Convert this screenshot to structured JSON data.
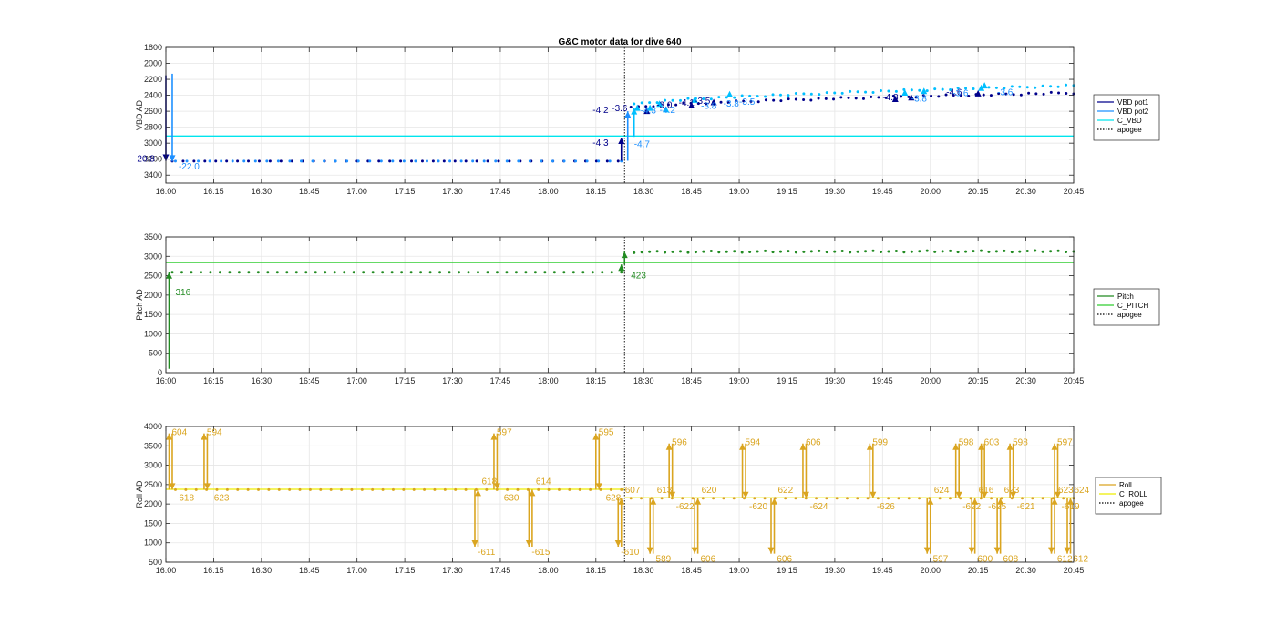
{
  "title": "G&C motor data for dive 640",
  "chart_data": [
    {
      "type": "scatter",
      "ylabel": "VBD AD",
      "ylim": [
        1800,
        3500
      ],
      "yreverse": true,
      "yticks": [
        1800,
        2000,
        2200,
        2400,
        2600,
        2800,
        3000,
        3200,
        3400
      ],
      "xticks": [
        "16:00",
        "16:15",
        "16:30",
        "16:45",
        "17:00",
        "17:15",
        "17:30",
        "17:45",
        "18:00",
        "18:15",
        "18:30",
        "18:45",
        "19:00",
        "19:15",
        "19:30",
        "19:45",
        "20:00",
        "20:15",
        "20:30",
        "20:45"
      ],
      "xlim_minutes": [
        0,
        285
      ],
      "grid": true,
      "legend": {
        "position": "right",
        "entries": [
          {
            "label": "VBD pot1",
            "color": "#00008b",
            "style": "solid"
          },
          {
            "label": "VBD pot2",
            "color": "#1e90ff",
            "style": "solid"
          },
          {
            "label": "C_VBD",
            "color": "#00e5ee",
            "style": "solid"
          },
          {
            "label": "apogee",
            "color": "#000000",
            "style": "dotted"
          }
        ]
      },
      "hlines": [
        {
          "name": "C_VBD",
          "y": 2910,
          "color": "#00e5ee"
        }
      ],
      "vline_apogee_minutes": 144,
      "series": [
        {
          "name": "VBD pot1",
          "color": "#00008b",
          "x_start": 2,
          "x_end": 142,
          "count": 42,
          "y": 3225
        },
        {
          "name": "VBD pot2",
          "color": "#1e90ff",
          "x_start": 3,
          "x_end": 143,
          "count": 40,
          "y": 3225
        },
        {
          "name": "VBD pot1",
          "color": "#00008b",
          "x_start": 146,
          "x_end": 285,
          "count": 60,
          "y_from": 2560,
          "y_to": 2370
        },
        {
          "name": "VBD pot2",
          "color": "#00bfff",
          "x_start": 147,
          "x_end": 285,
          "count": 58,
          "y_from": 2520,
          "y_to": 2280
        }
      ],
      "arrows": [
        {
          "x": 0,
          "y_from": 2150,
          "y_to": 3220,
          "color": "#00008b"
        },
        {
          "x": 2,
          "y_from": 2130,
          "y_to": 3230,
          "color": "#1e90ff"
        },
        {
          "x": 143,
          "y_from": 3220,
          "y_to": 2930,
          "color": "#00008b"
        },
        {
          "x": 145,
          "y_from": 3220,
          "y_to": 2600,
          "color": "#1e90ff"
        },
        {
          "x": 147,
          "y_from": 2920,
          "y_to": 2560,
          "color": "#00bfff"
        }
      ],
      "markers": [
        {
          "x": 148,
          "y": 2560,
          "color": "#00bfff"
        },
        {
          "x": 151,
          "y": 2600,
          "color": "#00008b"
        },
        {
          "x": 152,
          "y": 2560,
          "color": "#00bfff"
        },
        {
          "x": 155,
          "y": 2510,
          "color": "#00bfff"
        },
        {
          "x": 157,
          "y": 2580,
          "color": "#00bfff"
        },
        {
          "x": 165,
          "y": 2530,
          "color": "#00008b"
        },
        {
          "x": 166,
          "y": 2460,
          "color": "#00bfff"
        },
        {
          "x": 172,
          "y": 2490,
          "color": "#00008b"
        },
        {
          "x": 177,
          "y": 2390,
          "color": "#00bfff"
        },
        {
          "x": 229,
          "y": 2450,
          "color": "#00008b"
        },
        {
          "x": 232,
          "y": 2370,
          "color": "#00bfff"
        },
        {
          "x": 234,
          "y": 2430,
          "color": "#00008b"
        },
        {
          "x": 238,
          "y": 2350,
          "color": "#00bfff"
        },
        {
          "x": 255,
          "y": 2380,
          "color": "#00008b"
        },
        {
          "x": 256,
          "y": 2310,
          "color": "#00bfff"
        },
        {
          "x": 257,
          "y": 2280,
          "color": "#00bfff"
        }
      ],
      "annotations": [
        {
          "text": "-20.8",
          "x": -10,
          "y": 3230,
          "color": "#00008b"
        },
        {
          "text": "-22.0",
          "x": 4,
          "y": 3330,
          "color": "#1e90ff"
        },
        {
          "text": "-4.2",
          "x": 134,
          "y": 2620,
          "color": "#00008b"
        },
        {
          "text": "-3.6",
          "x": 140,
          "y": 2600,
          "color": "#00008b"
        },
        {
          "text": "-4.3",
          "x": 134,
          "y": 3030,
          "color": "#00008b"
        },
        {
          "text": "-4.7",
          "x": 147,
          "y": 3050,
          "color": "#1e90ff"
        },
        {
          "text": "-3.0",
          "x": 154,
          "y": 2560,
          "color": "#00008b"
        },
        {
          "text": "-4.3",
          "x": 149,
          "y": 2630,
          "color": "#1e90ff"
        },
        {
          "text": "-4.2",
          "x": 155,
          "y": 2620,
          "color": "#1e90ff"
        },
        {
          "text": "-4.1",
          "x": 161,
          "y": 2530,
          "color": "#00008b"
        },
        {
          "text": "-3.5",
          "x": 166,
          "y": 2510,
          "color": "#00008b"
        },
        {
          "text": "-3.8",
          "x": 168,
          "y": 2570,
          "color": "#1e90ff"
        },
        {
          "text": "-3.8",
          "x": 175,
          "y": 2540,
          "color": "#1e90ff"
        },
        {
          "text": "-3.5",
          "x": 180,
          "y": 2520,
          "color": "#1e90ff"
        },
        {
          "text": "-4.8",
          "x": 225,
          "y": 2460,
          "color": "#00008b"
        },
        {
          "text": "-3.8",
          "x": 234,
          "y": 2480,
          "color": "#1e90ff"
        },
        {
          "text": "-4.6",
          "x": 245,
          "y": 2400,
          "color": "#00008b"
        },
        {
          "text": "-3.6",
          "x": 247,
          "y": 2410,
          "color": "#1e90ff"
        },
        {
          "text": "-3.6",
          "x": 261,
          "y": 2400,
          "color": "#1e90ff"
        }
      ]
    },
    {
      "type": "scatter",
      "ylabel": "Pitch AD",
      "ylim": [
        0,
        3500
      ],
      "yreverse": false,
      "yticks": [
        0,
        500,
        1000,
        1500,
        2000,
        2500,
        3000,
        3500
      ],
      "xticks": [
        "16:00",
        "16:15",
        "16:30",
        "16:45",
        "17:00",
        "17:15",
        "17:30",
        "17:45",
        "18:00",
        "18:15",
        "18:30",
        "18:45",
        "19:00",
        "19:15",
        "19:30",
        "19:45",
        "20:00",
        "20:15",
        "20:30",
        "20:45"
      ],
      "xlim_minutes": [
        0,
        285
      ],
      "grid": true,
      "legend": {
        "position": "right",
        "entries": [
          {
            "label": "Pitch",
            "color": "#228b22",
            "style": "solid"
          },
          {
            "label": "C_PITCH",
            "color": "#32cd32",
            "style": "solid"
          },
          {
            "label": "apogee",
            "color": "#000000",
            "style": "dotted"
          }
        ]
      },
      "hlines": [
        {
          "name": "C_PITCH",
          "y": 2840,
          "color": "#32cd32"
        }
      ],
      "vline_apogee_minutes": 144,
      "series": [
        {
          "name": "Pitch",
          "color": "#228b22",
          "x_start": 2,
          "x_end": 143,
          "count": 48,
          "y": 2590
        },
        {
          "name": "Pitch",
          "color": "#228b22",
          "x_start": 147,
          "x_end": 285,
          "count": 58,
          "y_from": 3110,
          "y_to": 3130
        }
      ],
      "arrows": [
        {
          "x": 1,
          "y_from": 100,
          "y_to": 2590,
          "color": "#228b22"
        },
        {
          "x": 143,
          "y_from": 2590,
          "y_to": 2790,
          "color": "#228b22"
        },
        {
          "x": 144,
          "y_from": 2790,
          "y_to": 3120,
          "color": "#228b22"
        }
      ],
      "markers": [],
      "annotations": [
        {
          "text": "316",
          "x": 3,
          "y": 2000,
          "color": "#228b22"
        },
        {
          "text": "423",
          "x": 146,
          "y": 2430,
          "color": "#228b22"
        }
      ]
    },
    {
      "type": "scatter",
      "ylabel": "Roll AD",
      "ylim": [
        500,
        4000
      ],
      "yreverse": false,
      "yticks": [
        500,
        1000,
        1500,
        2000,
        2500,
        3000,
        3500,
        4000
      ],
      "xticks": [
        "16:00",
        "16:15",
        "16:30",
        "16:45",
        "17:00",
        "17:15",
        "17:30",
        "17:45",
        "18:00",
        "18:15",
        "18:30",
        "18:45",
        "19:00",
        "19:15",
        "19:30",
        "19:45",
        "20:00",
        "20:15",
        "20:30",
        "20:45"
      ],
      "xlim_minutes": [
        0,
        285
      ],
      "grid": true,
      "legend": {
        "position": "right",
        "entries": [
          {
            "label": "Roll",
            "color": "#daa520",
            "style": "solid"
          },
          {
            "label": "C_ROLL",
            "color": "#eeee00",
            "style": "solid"
          },
          {
            "label": "apogee",
            "color": "#000000",
            "style": "dotted"
          }
        ]
      },
      "hlines": [
        {
          "name": "C_ROLL",
          "y": 2380,
          "x_from": 0,
          "x_to": 144,
          "color": "#eeee00"
        },
        {
          "name": "C_ROLL",
          "y": 2160,
          "x_from": 144,
          "x_to": 285,
          "color": "#eeee00"
        }
      ],
      "vline_apogee_minutes": 144,
      "series": [
        {
          "name": "Roll",
          "color": "#daa520",
          "x_start": 3,
          "x_end": 143,
          "count": 44,
          "y": 2370
        },
        {
          "name": "Roll",
          "color": "#daa520",
          "x_start": 146,
          "x_end": 285,
          "count": 44,
          "y": 2150
        }
      ],
      "arrow_pairs": [
        {
          "x": 1,
          "y_base": 2370,
          "y_peak": 3820,
          "dir": "up",
          "lbl_peak": "604",
          "lbl_back": "-618"
        },
        {
          "x": 12,
          "y_base": 2370,
          "y_peak": 3820,
          "dir": "up",
          "lbl_peak": "594",
          "lbl_back": "-623"
        },
        {
          "x": 97,
          "y_base": 2370,
          "y_peak": 900,
          "dir": "down",
          "lbl_peak": "-611",
          "lbl_back": "618"
        },
        {
          "x": 103,
          "y_base": 2370,
          "y_peak": 3820,
          "dir": "up",
          "lbl_peak": "597",
          "lbl_back": "-630"
        },
        {
          "x": 114,
          "y_base": 2370,
          "y_peak": 900,
          "dir": "down",
          "lbl_peak": "-615",
          "lbl_back": "614"
        },
        {
          "x": 135,
          "y_base": 2370,
          "y_peak": 3820,
          "dir": "up",
          "lbl_peak": "595",
          "lbl_back": "-628"
        },
        {
          "x": 142,
          "y_base": 2150,
          "y_peak": 900,
          "dir": "down",
          "lbl_peak": "-610",
          "lbl_back": "607"
        },
        {
          "x": 152,
          "y_base": 2150,
          "y_peak": 720,
          "dir": "down",
          "lbl_peak": "-589",
          "lbl_back": "613"
        },
        {
          "x": 158,
          "y_base": 2150,
          "y_peak": 3560,
          "dir": "up",
          "lbl_peak": "596",
          "lbl_back": "-622"
        },
        {
          "x": 166,
          "y_base": 2150,
          "y_peak": 720,
          "dir": "down",
          "lbl_peak": "-606",
          "lbl_back": "620"
        },
        {
          "x": 181,
          "y_base": 2150,
          "y_peak": 3560,
          "dir": "up",
          "lbl_peak": "594",
          "lbl_back": "-620"
        },
        {
          "x": 190,
          "y_base": 2150,
          "y_peak": 720,
          "dir": "down",
          "lbl_peak": "-606",
          "lbl_back": "622"
        },
        {
          "x": 200,
          "y_base": 2150,
          "y_peak": 3560,
          "dir": "up",
          "lbl_peak": "606",
          "lbl_back": "-624"
        },
        {
          "x": 221,
          "y_base": 2150,
          "y_peak": 3560,
          "dir": "up",
          "lbl_peak": "599",
          "lbl_back": "-626"
        },
        {
          "x": 239,
          "y_base": 2150,
          "y_peak": 720,
          "dir": "down",
          "lbl_peak": "-597",
          "lbl_back": "624"
        },
        {
          "x": 248,
          "y_base": 2150,
          "y_peak": 3560,
          "dir": "up",
          "lbl_peak": "598",
          "lbl_back": "-622"
        },
        {
          "x": 253,
          "y_base": 2150,
          "y_peak": 720,
          "dir": "down",
          "lbl_peak": "-600",
          "lbl_back": "616"
        },
        {
          "x": 256,
          "y_base": 2150,
          "y_peak": 3560,
          "dir": "up",
          "lbl_peak": "603",
          "lbl_back": "-625"
        },
        {
          "x": 261,
          "y_base": 2150,
          "y_peak": 720,
          "dir": "down",
          "lbl_peak": "-608",
          "lbl_back": "623"
        },
        {
          "x": 265,
          "y_base": 2150,
          "y_peak": 3560,
          "dir": "up",
          "lbl_peak": "598",
          "lbl_back": "-621"
        },
        {
          "x": 278,
          "y_base": 2150,
          "y_peak": 720,
          "dir": "down",
          "lbl_peak": "-612",
          "lbl_back": "623"
        },
        {
          "x": 279,
          "y_base": 2150,
          "y_peak": 3560,
          "dir": "up",
          "lbl_peak": "597",
          "lbl_back": "-619"
        },
        {
          "x": 283,
          "y_base": 2150,
          "y_peak": 720,
          "dir": "down",
          "lbl_peak": "-612",
          "lbl_back": "624"
        }
      ]
    }
  ]
}
